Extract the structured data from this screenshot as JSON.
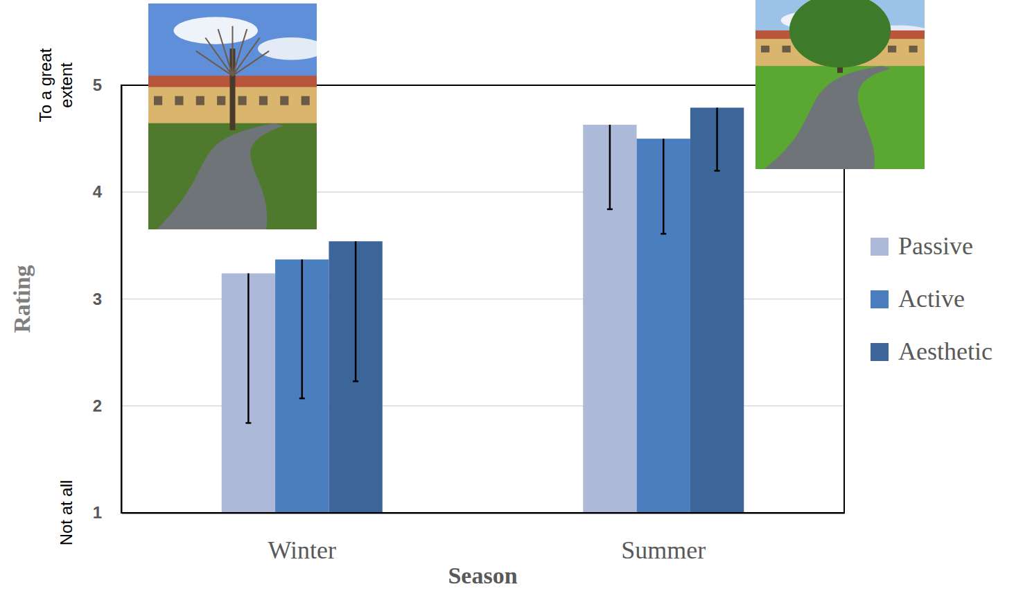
{
  "chart_data": {
    "type": "bar",
    "x_label": "Season",
    "y_label": "Rating",
    "categories": [
      "Winter",
      "Summer"
    ],
    "series": [
      {
        "name": "Passive",
        "color": "#adb9d9",
        "values": [
          3.24,
          4.63
        ],
        "errors": [
          1.4,
          0.79
        ]
      },
      {
        "name": "Active",
        "color": "#4a7ebf",
        "values": [
          3.37,
          4.5
        ],
        "errors": [
          1.3,
          0.89
        ]
      },
      {
        "name": "Aesthetic",
        "color": "#3c6699",
        "values": [
          3.54,
          4.79
        ],
        "errors": [
          1.31,
          0.59
        ]
      }
    ],
    "ylim": [
      1,
      5
    ],
    "yticks": [
      1,
      2,
      3,
      4,
      5
    ],
    "grid": true,
    "legend": "right",
    "annotations": [
      {
        "text": "To a great extent",
        "y": 5
      },
      {
        "text": "Not at all",
        "y": 1
      }
    ]
  }
}
